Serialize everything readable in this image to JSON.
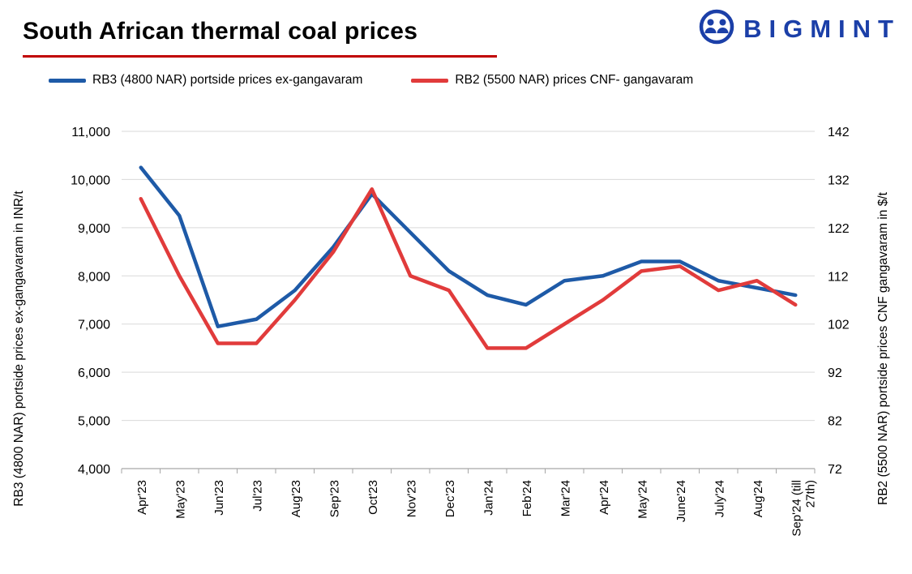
{
  "header": {
    "title": "South African thermal coal prices",
    "underline_color": "#C00000"
  },
  "logo": {
    "text": "BIGMINT",
    "color": "#1B3FA8"
  },
  "legend": [
    {
      "label": "RB3 (4800 NAR) portside prices ex-gangavaram",
      "color": "#1E5AA7"
    },
    {
      "label": "RB2 (5500 NAR) prices CNF- gangavaram",
      "color": "#E13B3B"
    }
  ],
  "chart_data": {
    "type": "line",
    "categories": [
      "Apr'23",
      "May'23",
      "Jun'23",
      "Jul'23",
      "Aug'23",
      "Sep'23",
      "Oct'23",
      "Nov'23",
      "Dec'23",
      "Jan'24",
      "Feb'24",
      "Mar'24",
      "Apr'24",
      "May'24",
      "June'24",
      "July'24",
      "Aug'24",
      "Sep'24 (till\n27th)"
    ],
    "series": [
      {
        "name": "RB3 (4800 NAR) portside prices ex-gangavaram",
        "axis": "left",
        "color": "#1E5AA7",
        "values": [
          10250,
          9250,
          6950,
          7100,
          7700,
          8600,
          9700,
          8900,
          8100,
          7600,
          7400,
          7900,
          8000,
          8300,
          8300,
          7900,
          7750,
          7600
        ]
      },
      {
        "name": "RB2 (5500 NAR) prices CNF- gangavaram",
        "axis": "right",
        "color": "#E13B3B",
        "values": [
          128,
          112,
          98,
          98,
          107,
          117,
          130,
          112,
          109,
          97,
          97,
          102,
          107,
          113,
          114,
          109,
          111,
          106
        ]
      }
    ],
    "left_axis": {
      "title": "RB3 (4800 NAR)  portside prices ex-gangavaram  in INR/t",
      "min": 4000,
      "max": 11000,
      "tick_labels": [
        "11,000",
        "10,000",
        "9,000",
        "8,000",
        "7,000",
        "6,000",
        "5,000",
        "4,000"
      ]
    },
    "right_axis": {
      "title": "RB2 (5500 NAR)  portside prices CNF  gangavaram  in $/t",
      "min": 72,
      "max": 142,
      "tick_labels": [
        "142",
        "132",
        "122",
        "112",
        "102",
        "92",
        "82",
        "72"
      ]
    },
    "grid": "horizontal",
    "legend_position": "top"
  }
}
